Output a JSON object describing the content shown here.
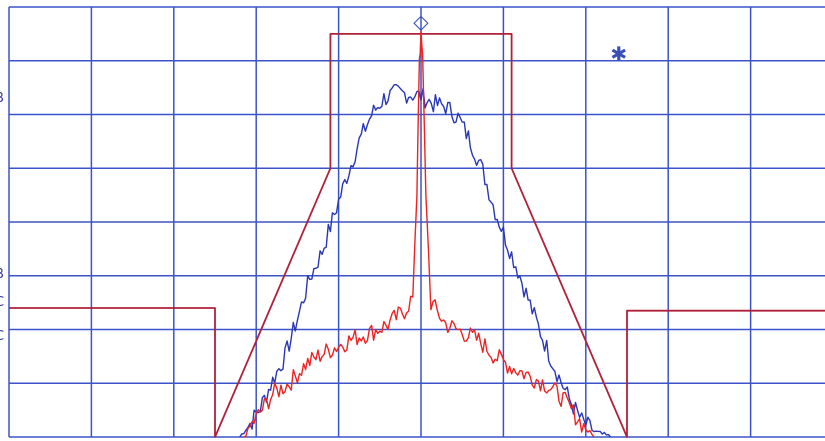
{
  "chart_data": {
    "type": "line",
    "title": "",
    "xlabel": "",
    "ylabel": "",
    "grid": true,
    "x_divisions": 10,
    "y_divisions": 8,
    "colors": {
      "grid": "#3b53c8",
      "mask": "#b0203a",
      "trace_blue": "#2a37b5",
      "trace_red": "#ee2222",
      "marker": "#3a4fb8"
    },
    "left_tick_labels": [
      "B",
      "B",
      "C",
      "C"
    ],
    "markers": [
      {
        "symbol": "◇",
        "name": "diamond-marker",
        "x": 5.0,
        "y": 7.7
      },
      {
        "symbol": "✱",
        "name": "asterisk-marker",
        "x": 7.4,
        "y": 7.1
      }
    ],
    "series": [
      {
        "key": "mask",
        "points": [
          [
            0,
            2.4
          ],
          [
            2.5,
            2.4
          ],
          [
            2.5,
            0
          ],
          [
            3.9,
            5.0
          ],
          [
            3.9,
            7.5
          ],
          [
            6.1,
            7.5
          ],
          [
            6.1,
            5.0
          ],
          [
            7.5,
            0
          ],
          [
            7.5,
            2.35
          ],
          [
            10,
            2.35
          ]
        ]
      },
      {
        "key": "trace_blue",
        "points": [
          [
            2.8,
            0
          ],
          [
            2.95,
            0.3
          ],
          [
            3.05,
            0.55
          ],
          [
            3.2,
            1.05
          ],
          [
            3.35,
            1.5
          ],
          [
            3.5,
            2.2
          ],
          [
            3.65,
            2.95
          ],
          [
            3.8,
            3.45
          ],
          [
            3.95,
            4.15
          ],
          [
            4.1,
            4.85
          ],
          [
            4.25,
            5.5
          ],
          [
            4.4,
            6.0
          ],
          [
            4.55,
            6.3
          ],
          [
            4.7,
            6.4
          ],
          [
            4.85,
            6.38
          ],
          [
            5.0,
            6.35
          ],
          [
            5.15,
            6.2
          ],
          [
            5.3,
            6.15
          ],
          [
            5.45,
            5.95
          ],
          [
            5.6,
            5.5
          ],
          [
            5.75,
            4.95
          ],
          [
            5.9,
            4.2
          ],
          [
            6.05,
            3.6
          ],
          [
            6.2,
            3.0
          ],
          [
            6.35,
            2.35
          ],
          [
            6.5,
            1.75
          ],
          [
            6.65,
            1.2
          ],
          [
            6.8,
            0.7
          ],
          [
            6.95,
            0.3
          ],
          [
            7.1,
            0.1
          ],
          [
            7.3,
            0
          ]
        ]
      },
      {
        "key": "trace_red",
        "points": [
          [
            2.85,
            0
          ],
          [
            3.0,
            0.35
          ],
          [
            3.2,
            0.8
          ],
          [
            3.4,
            1.0
          ],
          [
            3.6,
            1.35
          ],
          [
            3.8,
            1.55
          ],
          [
            4.0,
            1.7
          ],
          [
            4.2,
            1.85
          ],
          [
            4.4,
            1.95
          ],
          [
            4.6,
            2.1
          ],
          [
            4.8,
            2.35
          ],
          [
            4.9,
            2.6
          ],
          [
            4.95,
            4.5
          ],
          [
            4.98,
            7.1
          ],
          [
            5.0,
            7.4
          ],
          [
            5.02,
            7.1
          ],
          [
            5.06,
            4.5
          ],
          [
            5.12,
            2.5
          ],
          [
            5.3,
            2.1
          ],
          [
            5.5,
            1.95
          ],
          [
            5.7,
            1.8
          ],
          [
            5.9,
            1.5
          ],
          [
            6.1,
            1.3
          ],
          [
            6.3,
            1.15
          ],
          [
            6.5,
            1.0
          ],
          [
            6.7,
            0.75
          ],
          [
            6.85,
            0.45
          ],
          [
            7.0,
            0.15
          ],
          [
            7.1,
            0
          ]
        ]
      }
    ]
  }
}
